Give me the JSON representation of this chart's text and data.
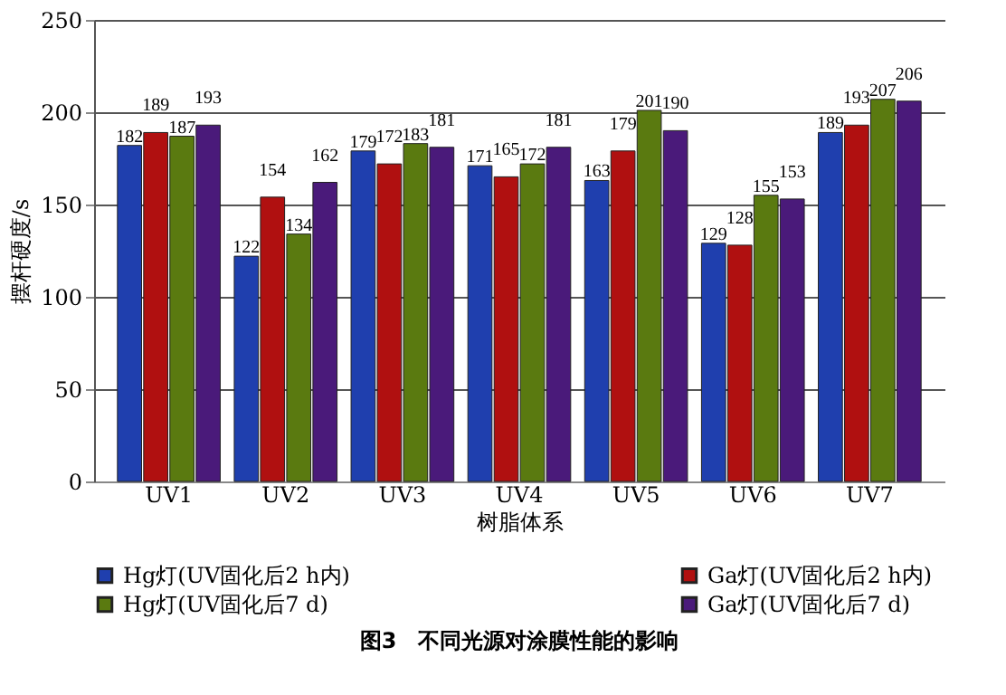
{
  "chart_data": {
    "type": "bar",
    "title": "图3　不同光源对涂膜性能的影响",
    "xlabel": "树脂体系",
    "ylabel": "摆杆硬度/s",
    "categories": [
      "UV1",
      "UV2",
      "UV3",
      "UV4",
      "UV5",
      "UV6",
      "UV7"
    ],
    "series": [
      {
        "name": "Hg灯(UV固化后2 h内)",
        "color": "#1f3fae",
        "values": [
          182,
          122,
          179,
          171,
          163,
          129,
          189
        ]
      },
      {
        "name": "Ga灯(UV固化后2 h内)",
        "color": "#b01010",
        "values": [
          189,
          154,
          172,
          165,
          179,
          128,
          193
        ]
      },
      {
        "name": "Hg灯(UV固化后7 d)",
        "color": "#5a7a10",
        "values": [
          187,
          134,
          183,
          172,
          201,
          155,
          207
        ]
      },
      {
        "name": "Ga灯(UV固化后7 d)",
        "color": "#4a1a7a",
        "values": [
          193,
          162,
          181,
          181,
          190,
          153,
          206
        ]
      }
    ],
    "ylim": [
      0,
      250
    ],
    "yticks": [
      0,
      50,
      100,
      150,
      200,
      250
    ],
    "grid": "y",
    "legend": "bottom",
    "data_labels": true
  }
}
